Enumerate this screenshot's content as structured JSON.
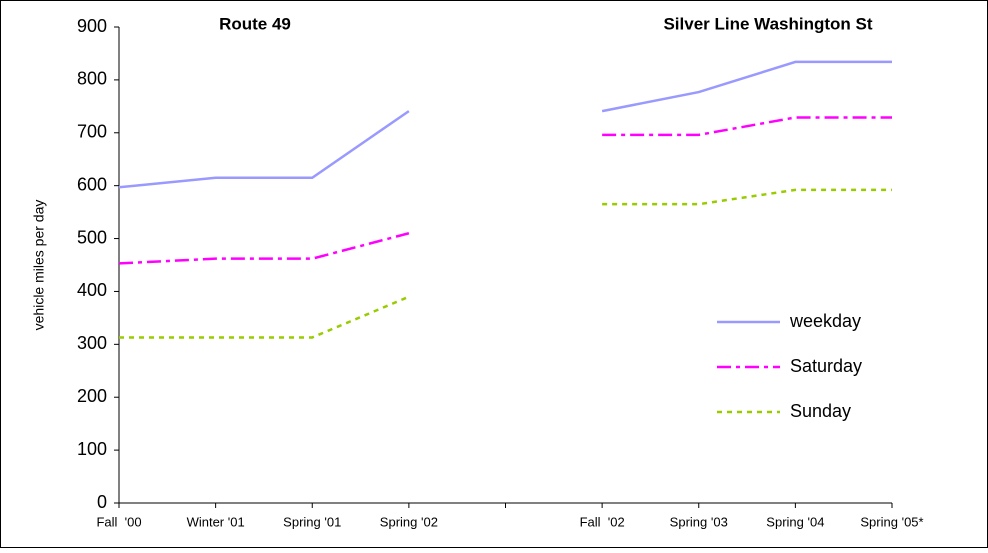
{
  "chart_data": {
    "type": "line",
    "y_label": "vehicle miles per day",
    "annotations": [
      "Route 49",
      "Silver Line Washington St"
    ],
    "categories": [
      "Fall  '00",
      "Winter '01",
      "Spring '01",
      "Spring '02",
      null,
      "Fall  '02",
      "Spring '03",
      "Spring '04",
      "Spring '05*"
    ],
    "series": [
      {
        "name": "weekday",
        "color": "#9999ff",
        "dash": "solid",
        "values": [
          597,
          615,
          615,
          741,
          null,
          741,
          777,
          834,
          834
        ]
      },
      {
        "name": "Saturday",
        "color": "#ff00ff",
        "dash": "dash-dot",
        "values": [
          453,
          462,
          462,
          510,
          null,
          696,
          696,
          729,
          729
        ]
      },
      {
        "name": "Sunday",
        "color": "#99cc00",
        "dash": "dot",
        "values": [
          313,
          313,
          313,
          390,
          null,
          565,
          565,
          592,
          592
        ]
      }
    ],
    "ylim": [
      0,
      900
    ],
    "yticks": [
      0,
      100,
      200,
      300,
      400,
      500,
      600,
      700,
      800,
      900
    ],
    "grid": false,
    "legend": "right"
  }
}
